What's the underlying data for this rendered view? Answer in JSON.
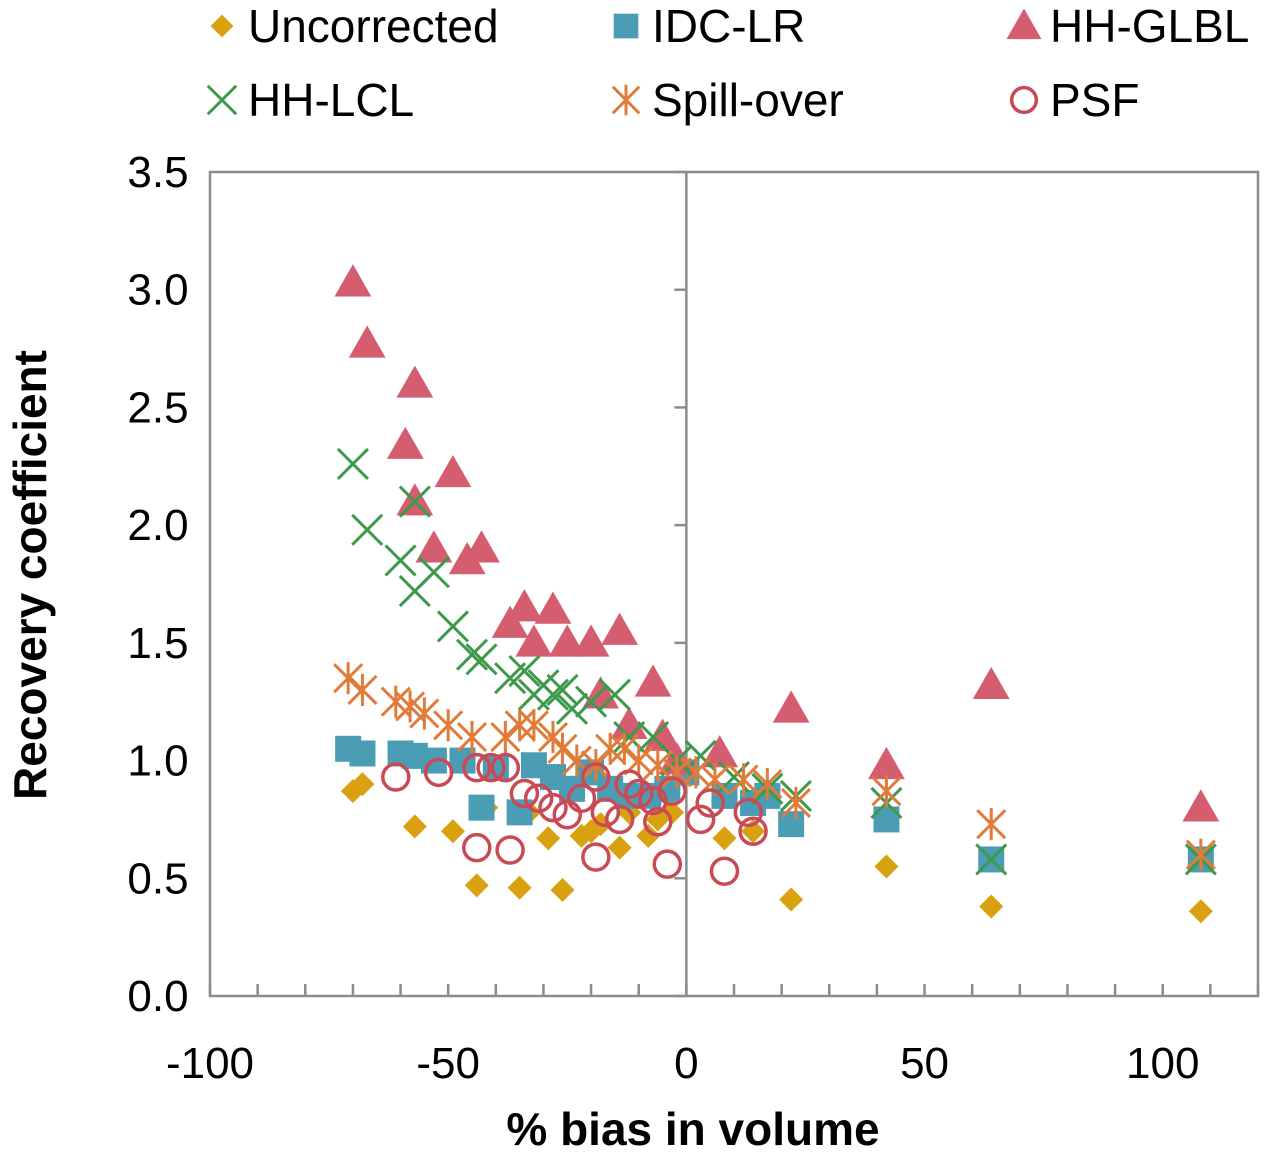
{
  "chart_data": {
    "type": "scatter",
    "title": "",
    "xlabel": "% bias in volume",
    "ylabel": "Recovery coefficient",
    "xlim": [
      -100,
      120
    ],
    "ylim": [
      0,
      3.5
    ],
    "x_ticks": [
      -100,
      -50,
      0,
      50,
      100
    ],
    "x_tick_labels": [
      "-100",
      "-50",
      "0",
      "50",
      "100"
    ],
    "y_ticks": [
      0,
      0.5,
      1,
      1.5,
      2,
      2.5,
      3,
      3.5
    ],
    "y_tick_labels": [
      "0.0",
      "0.5",
      "1.0",
      "1.5",
      "2.0",
      "2.5",
      "3.0",
      "3.5"
    ],
    "grid": false,
    "legend_position": "top",
    "series": [
      {
        "name": "Uncorrected",
        "marker": "diamond",
        "color": "#D9A00F",
        "points": [
          [
            -70,
            0.87
          ],
          [
            -68,
            0.9
          ],
          [
            -57,
            0.72
          ],
          [
            -49,
            0.7
          ],
          [
            -44,
            0.47
          ],
          [
            -42,
            0.8
          ],
          [
            -35,
            0.46
          ],
          [
            -33,
            0.78
          ],
          [
            -29,
            0.67
          ],
          [
            -26,
            0.45
          ],
          [
            -22,
            0.68
          ],
          [
            -20,
            0.7
          ],
          [
            -18,
            0.73
          ],
          [
            -14,
            0.63
          ],
          [
            -12,
            0.78
          ],
          [
            -8,
            0.68
          ],
          [
            -6,
            0.75
          ],
          [
            -3,
            0.78
          ],
          [
            8,
            0.67
          ],
          [
            14,
            0.7
          ],
          [
            22,
            0.41
          ],
          [
            42,
            0.55
          ],
          [
            64,
            0.38
          ],
          [
            108,
            0.36
          ]
        ]
      },
      {
        "name": "IDC-LR",
        "marker": "square",
        "color": "#4A9DB5",
        "points": [
          [
            -71,
            1.05
          ],
          [
            -68,
            1.03
          ],
          [
            -60,
            1.03
          ],
          [
            -57,
            1.02
          ],
          [
            -53,
            1.0
          ],
          [
            -47,
            1.0
          ],
          [
            -43,
            0.8
          ],
          [
            -40,
            0.97
          ],
          [
            -35,
            0.78
          ],
          [
            -32,
            0.98
          ],
          [
            -28,
            0.93
          ],
          [
            -24,
            0.88
          ],
          [
            -20,
            0.95
          ],
          [
            -16,
            0.88
          ],
          [
            -12,
            0.85
          ],
          [
            -8,
            0.85
          ],
          [
            -4,
            0.88
          ],
          [
            0,
            0.95
          ],
          [
            8,
            0.85
          ],
          [
            14,
            0.82
          ],
          [
            17,
            0.85
          ],
          [
            22,
            0.73
          ],
          [
            42,
            0.75
          ],
          [
            64,
            0.58
          ],
          [
            108,
            0.58
          ]
        ]
      },
      {
        "name": "HH-GLBL",
        "marker": "triangle",
        "color": "#D45D70",
        "points": [
          [
            -70,
            3.03
          ],
          [
            -67,
            2.77
          ],
          [
            -57,
            2.6
          ],
          [
            -59,
            2.34
          ],
          [
            -57,
            2.1
          ],
          [
            -53,
            1.9
          ],
          [
            -49,
            2.22
          ],
          [
            -46,
            1.85
          ],
          [
            -43,
            1.9
          ],
          [
            -37,
            1.58
          ],
          [
            -34,
            1.65
          ],
          [
            -32,
            1.5
          ],
          [
            -28,
            1.64
          ],
          [
            -25,
            1.5
          ],
          [
            -20,
            1.5
          ],
          [
            -18,
            1.28
          ],
          [
            -14,
            1.55
          ],
          [
            -12,
            1.15
          ],
          [
            -7,
            1.33
          ],
          [
            -5,
            1.1
          ],
          [
            -2,
            1.0
          ],
          [
            7,
            1.03
          ],
          [
            22,
            1.22
          ],
          [
            42,
            0.98
          ],
          [
            64,
            1.32
          ],
          [
            108,
            0.8
          ]
        ]
      },
      {
        "name": "HH-LCL",
        "marker": "x",
        "color": "#3E9A4A",
        "points": [
          [
            -70,
            2.26
          ],
          [
            -67,
            1.98
          ],
          [
            -60,
            1.85
          ],
          [
            -57,
            2.1
          ],
          [
            -57,
            1.72
          ],
          [
            -53,
            1.8
          ],
          [
            -49,
            1.57
          ],
          [
            -45,
            1.45
          ],
          [
            -43,
            1.43
          ],
          [
            -37,
            1.35
          ],
          [
            -34,
            1.38
          ],
          [
            -32,
            1.28
          ],
          [
            -30,
            1.32
          ],
          [
            -28,
            1.28
          ],
          [
            -26,
            1.3
          ],
          [
            -24,
            1.22
          ],
          [
            -20,
            1.25
          ],
          [
            -15,
            1.28
          ],
          [
            -12,
            1.1
          ],
          [
            -7,
            1.1
          ],
          [
            -2,
            1.0
          ],
          [
            3,
            1.02
          ],
          [
            10,
            0.93
          ],
          [
            17,
            0.88
          ],
          [
            23,
            0.85
          ],
          [
            42,
            0.82
          ],
          [
            64,
            0.58
          ],
          [
            108,
            0.58
          ]
        ]
      },
      {
        "name": "Spill-over",
        "marker": "asterisk",
        "color": "#E07B39",
        "points": [
          [
            -71,
            1.35
          ],
          [
            -68,
            1.3
          ],
          [
            -61,
            1.25
          ],
          [
            -58,
            1.23
          ],
          [
            -55,
            1.2
          ],
          [
            -50,
            1.15
          ],
          [
            -45,
            1.1
          ],
          [
            -38,
            1.1
          ],
          [
            -35,
            1.15
          ],
          [
            -32,
            1.15
          ],
          [
            -28,
            1.1
          ],
          [
            -26,
            1.05
          ],
          [
            -23,
            1.0
          ],
          [
            -19,
            0.98
          ],
          [
            -16,
            1.05
          ],
          [
            -13,
            1.05
          ],
          [
            -10,
            1.0
          ],
          [
            -6,
            0.98
          ],
          [
            -2,
            0.95
          ],
          [
            2,
            0.95
          ],
          [
            6,
            0.92
          ],
          [
            12,
            0.92
          ],
          [
            17,
            0.9
          ],
          [
            23,
            0.82
          ],
          [
            42,
            0.87
          ],
          [
            64,
            0.73
          ],
          [
            108,
            0.6
          ]
        ]
      },
      {
        "name": "PSF",
        "marker": "circle",
        "color": "#C94A55",
        "points": [
          [
            -61,
            0.93
          ],
          [
            -52,
            0.95
          ],
          [
            -44,
            0.97
          ],
          [
            -41,
            0.97
          ],
          [
            -38,
            0.97
          ],
          [
            -44,
            0.63
          ],
          [
            -37,
            0.62
          ],
          [
            -34,
            0.86
          ],
          [
            -31,
            0.84
          ],
          [
            -28,
            0.8
          ],
          [
            -25,
            0.77
          ],
          [
            -22,
            0.84
          ],
          [
            -19,
            0.93
          ],
          [
            -19,
            0.59
          ],
          [
            -17,
            0.78
          ],
          [
            -14,
            0.75
          ],
          [
            -12,
            0.9
          ],
          [
            -10,
            0.86
          ],
          [
            -7,
            0.83
          ],
          [
            -6,
            0.74
          ],
          [
            -4,
            0.56
          ],
          [
            -3,
            0.87
          ],
          [
            3,
            0.75
          ],
          [
            5,
            0.82
          ],
          [
            8,
            0.53
          ],
          [
            13,
            0.78
          ],
          [
            14,
            0.7
          ]
        ]
      }
    ]
  }
}
